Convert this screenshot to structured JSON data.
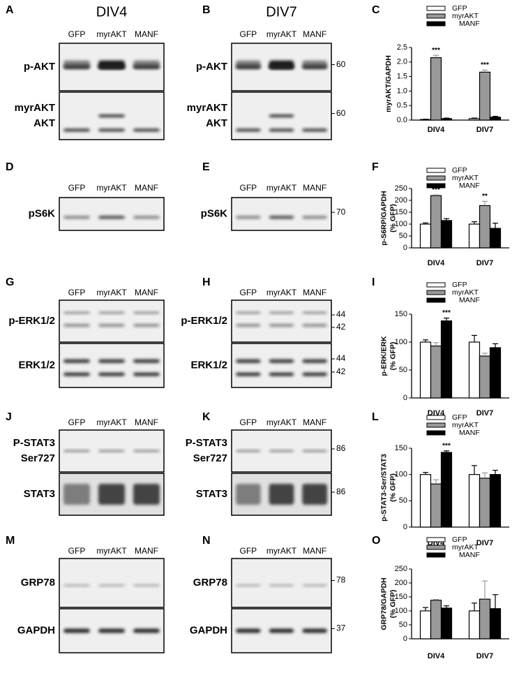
{
  "blots": [
    {
      "letter": "A",
      "header": "DIV4",
      "lanes": [
        "GFP",
        "myrAKT",
        "MANF"
      ],
      "rows": [
        {
          "label": [
            "p-AKT"
          ],
          "markers": []
        },
        {
          "label": [
            "myrAKT",
            "AKT"
          ],
          "markers": []
        }
      ]
    },
    {
      "letter": "B",
      "header": "DIV7",
      "lanes": [
        "GFP",
        "myrAKT",
        "MANF"
      ],
      "rows": [
        {
          "label": [
            "p-AKT"
          ],
          "markers": [
            "60"
          ]
        },
        {
          "label": [
            "myrAKT",
            "AKT"
          ],
          "markers": [
            "60"
          ]
        }
      ]
    },
    {
      "letter": "D",
      "lanes": [
        "GFP",
        "myrAKT",
        "MANF"
      ],
      "rows": [
        {
          "label": [
            "pS6K"
          ],
          "markers": []
        }
      ]
    },
    {
      "letter": "E",
      "lanes": [
        "GFP",
        "myrAKT",
        "MANF"
      ],
      "rows": [
        {
          "label": [
            "pS6K"
          ],
          "markers": [
            "70"
          ]
        }
      ]
    },
    {
      "letter": "G",
      "lanes": [
        "GFP",
        "myrAKT",
        "MANF"
      ],
      "rows": [
        {
          "label": [
            "p-ERK1/2"
          ],
          "markers": []
        },
        {
          "label": [
            "ERK1/2"
          ],
          "markers": []
        }
      ]
    },
    {
      "letter": "H",
      "lanes": [
        "GFP",
        "myrAKT",
        "MANF"
      ],
      "rows": [
        {
          "label": [
            "p-ERK1/2"
          ],
          "markers": [
            "44",
            "42"
          ]
        },
        {
          "label": [
            "ERK1/2"
          ],
          "markers": [
            "44",
            "42"
          ]
        }
      ]
    },
    {
      "letter": "J",
      "lanes": [
        "GFP",
        "myrAKT",
        "MANF"
      ],
      "rows": [
        {
          "label": [
            "P-STAT3",
            "Ser727"
          ],
          "markers": []
        },
        {
          "label": [
            "STAT3"
          ],
          "markers": []
        }
      ]
    },
    {
      "letter": "K",
      "lanes": [
        "GFP",
        "myrAKT",
        "MANF"
      ],
      "rows": [
        {
          "label": [
            "P-STAT3",
            "Ser727"
          ],
          "markers": [
            "86"
          ]
        },
        {
          "label": [
            "STAT3"
          ],
          "markers": [
            "86"
          ]
        }
      ]
    },
    {
      "letter": "M",
      "lanes": [
        "GFP",
        "myrAKT",
        "MANF"
      ],
      "rows": [
        {
          "label": [
            "GRP78"
          ],
          "markers": []
        },
        {
          "label": [
            "GAPDH"
          ],
          "markers": []
        }
      ]
    },
    {
      "letter": "N",
      "lanes": [
        "GFP",
        "myrAKT",
        "MANF"
      ],
      "rows": [
        {
          "label": [
            "GRP78"
          ],
          "markers": [
            "78"
          ]
        },
        {
          "label": [
            "GAPDH"
          ],
          "markers": [
            "37"
          ]
        }
      ]
    }
  ],
  "chart_data": [
    {
      "type": "bar",
      "letter": "C",
      "ylabel": [
        "myrAKT/GAPDH"
      ],
      "categories": [
        "DIV4",
        "DIV7"
      ],
      "ylim": [
        0,
        2.5
      ],
      "yticks": [
        {
          "value": 0,
          "label": "0.0"
        },
        0.5,
        {
          "value": 1,
          "label": "1.0"
        },
        1.5,
        {
          "value": 2,
          "label": "2.0"
        },
        2.5
      ],
      "series": [
        {
          "name": "GFP",
          "color": "#ffffff",
          "values": [
            0.02,
            0.05
          ],
          "errors": [
            0.01,
            0.02
          ],
          "significance": [
            null,
            null
          ]
        },
        {
          "name": "myrAKT",
          "color": "#999999",
          "values": [
            2.15,
            1.65
          ],
          "errors": [
            0.08,
            0.07
          ],
          "significance": [
            "***",
            "***"
          ]
        },
        {
          "name": "MANF",
          "color": "#000000",
          "values": [
            0.05,
            0.1
          ],
          "errors": [
            0.02,
            0.03
          ],
          "significance": [
            null,
            null
          ]
        }
      ]
    },
    {
      "type": "bar",
      "letter": "F",
      "ylabel": [
        "p-S6RP/GAPDH",
        "(% GFP)"
      ],
      "categories": [
        "DIV4",
        "DIV7"
      ],
      "ylim": [
        0,
        250
      ],
      "yticks": [
        0,
        50,
        100,
        150,
        200,
        250
      ],
      "series": [
        {
          "name": "GFP",
          "color": "#ffffff",
          "values": [
            100,
            100
          ],
          "errors": [
            5,
            10
          ],
          "significance": [
            null,
            null
          ]
        },
        {
          "name": "myrAKT",
          "color": "#999999",
          "values": [
            220,
            178
          ],
          "errors": [
            3,
            18
          ],
          "significance": [
            "***",
            "**"
          ]
        },
        {
          "name": "MANF",
          "color": "#000000",
          "values": [
            115,
            82
          ],
          "errors": [
            8,
            22
          ],
          "significance": [
            null,
            null
          ]
        }
      ]
    },
    {
      "type": "bar",
      "letter": "I",
      "ylabel": [
        "p-ERK/ERK",
        "(% GFP)"
      ],
      "categories": [
        "DIV4",
        "DIV7"
      ],
      "ylim": [
        0,
        150
      ],
      "yticks": [
        0,
        50,
        100,
        150
      ],
      "series": [
        {
          "name": "GFP",
          "color": "#ffffff",
          "values": [
            100,
            100
          ],
          "errors": [
            4,
            12
          ],
          "significance": [
            null,
            null
          ]
        },
        {
          "name": "myrAKT",
          "color": "#999999",
          "values": [
            93,
            75
          ],
          "errors": [
            6,
            5
          ],
          "significance": [
            null,
            null
          ]
        },
        {
          "name": "MANF",
          "color": "#000000",
          "values": [
            138,
            90
          ],
          "errors": [
            5,
            7
          ],
          "significance": [
            "***",
            null
          ]
        }
      ]
    },
    {
      "type": "bar",
      "letter": "L",
      "ylabel": [
        "p-STAT3-Ser/STAT3",
        "(% GFP)"
      ],
      "categories": [
        "DIV4",
        "DIV7"
      ],
      "ylim": [
        0,
        150
      ],
      "yticks": [
        0,
        50,
        100,
        150
      ],
      "series": [
        {
          "name": "GFP",
          "color": "#ffffff",
          "values": [
            100,
            100
          ],
          "errors": [
            4,
            17
          ],
          "significance": [
            null,
            null
          ]
        },
        {
          "name": "myrAKT",
          "color": "#999999",
          "values": [
            82,
            93
          ],
          "errors": [
            8,
            10
          ],
          "significance": [
            null,
            null
          ]
        },
        {
          "name": "MANF",
          "color": "#000000",
          "values": [
            142,
            100
          ],
          "errors": [
            3,
            8
          ],
          "significance": [
            "***",
            null
          ]
        }
      ]
    },
    {
      "type": "bar",
      "letter": "O",
      "ylabel": [
        "GRP78/GAPDH",
        "(% GFP)"
      ],
      "categories": [
        "DIV4",
        "DIV7"
      ],
      "ylim": [
        0,
        250
      ],
      "yticks": [
        0,
        50,
        100,
        150,
        200,
        250
      ],
      "series": [
        {
          "name": "GFP",
          "color": "#ffffff",
          "values": [
            100,
            100
          ],
          "errors": [
            12,
            28
          ],
          "significance": [
            null,
            null
          ]
        },
        {
          "name": "myrAKT",
          "color": "#999999",
          "values": [
            138,
            142
          ],
          "errors": [
            3,
            65
          ],
          "significance": [
            null,
            null
          ]
        },
        {
          "name": "MANF",
          "color": "#000000",
          "values": [
            110,
            108
          ],
          "errors": [
            8,
            50
          ],
          "significance": [
            null,
            null
          ]
        }
      ]
    }
  ]
}
